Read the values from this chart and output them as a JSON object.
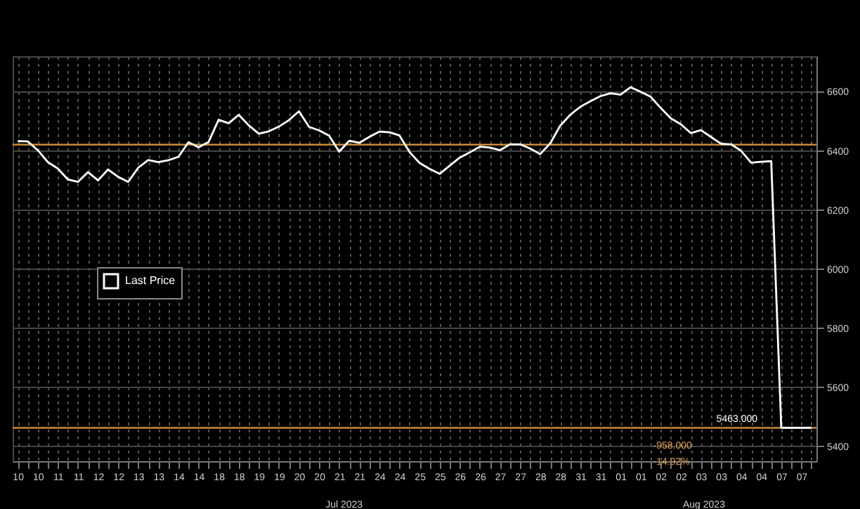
{
  "chart_data": {
    "type": "line",
    "categories": [
      "10",
      null,
      "10",
      null,
      "11",
      null,
      "11",
      null,
      "12",
      null,
      "12",
      null,
      "13",
      null,
      "13",
      null,
      "14",
      null,
      "14",
      null,
      "18",
      null,
      "18",
      null,
      "19",
      null,
      "19",
      null,
      "20",
      null,
      "20",
      null,
      "21",
      null,
      "21",
      null,
      "24",
      null,
      "24",
      null,
      "25",
      null,
      "25",
      null,
      "26",
      null,
      "26",
      null,
      "27",
      null,
      "27",
      null,
      "28",
      null,
      "28",
      null,
      "31",
      null,
      "31",
      null,
      "01",
      null,
      "01",
      null,
      "02",
      null,
      "02",
      null,
      "03",
      null,
      "03",
      null,
      "04",
      null,
      "04",
      null,
      "07",
      null,
      "07",
      null
    ],
    "series": [
      {
        "name": "Last Price",
        "color": "#ffffff",
        "values": [
          6433,
          6432,
          6402,
          6362,
          6340,
          6303,
          6295,
          6328,
          6300,
          6337,
          6312,
          6295,
          6343,
          6369,
          6362,
          6368,
          6380,
          6429,
          6412,
          6430,
          6505,
          6493,
          6522,
          6486,
          6458,
          6466,
          6482,
          6504,
          6534,
          6481,
          6469,
          6451,
          6397,
          6434,
          6427,
          6447,
          6465,
          6463,
          6452,
          6396,
          6359,
          6339,
          6322,
          6350,
          6377,
          6395,
          6414,
          6411,
          6402,
          6422,
          6422,
          6408,
          6389,
          6425,
          6485,
          6522,
          6549,
          6568,
          6585,
          6595,
          6590,
          6615,
          6600,
          6583,
          6545,
          6510,
          6490,
          6460,
          6470,
          6447,
          6424,
          6422,
          6400,
          6360,
          6363,
          6365,
          5463,
          5463,
          5463,
          5463
        ]
      }
    ],
    "ylim": [
      5350,
      6720
    ],
    "yticks": [
      5400,
      5600,
      5800,
      6000,
      6200,
      6400,
      6600
    ],
    "grid": true,
    "legend": "left",
    "line_style": "solid",
    "ref_lines": [
      {
        "axis": "y",
        "value": 6421,
        "color": "#c8893a"
      },
      {
        "axis": "y",
        "value": 5463,
        "label": "5463.000",
        "color": "#c8893a"
      }
    ],
    "annotations": [
      "Jul 2023",
      "Aug 2023",
      "-958.000",
      "-14.92%"
    ]
  }
}
